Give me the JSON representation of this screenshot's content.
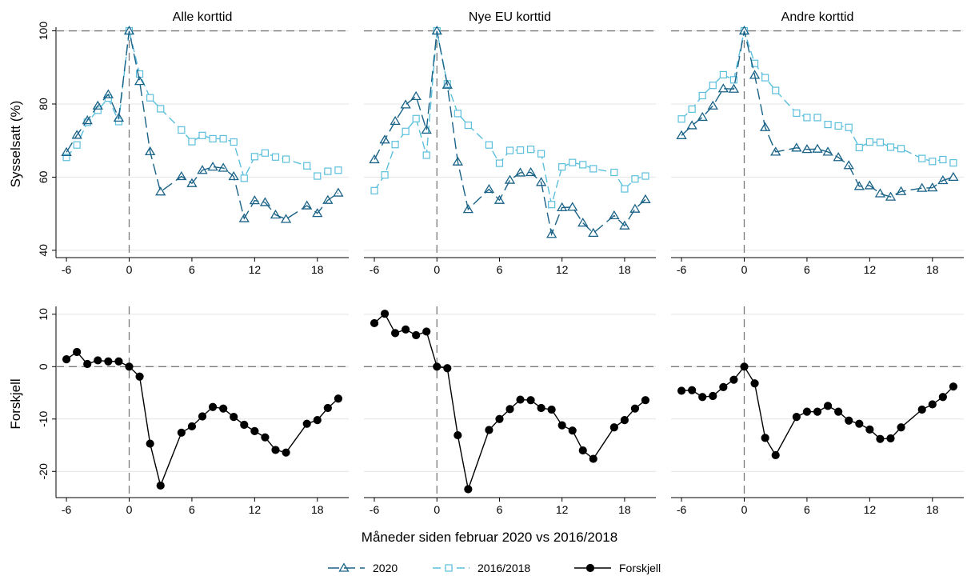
{
  "chart_data": {
    "type": "line",
    "layout": "2 rows x 3 columns, shared x-axis",
    "xlabel": "Måneder siden februar 2020 vs 2016/2018",
    "xlim": [
      -7,
      21
    ],
    "xticks": [
      -6,
      0,
      6,
      12,
      18
    ],
    "grid": true,
    "legend_position": "bottom-center",
    "legend": [
      {
        "name": "2020",
        "color": "#1a6287",
        "marker": "triangle-hollow",
        "dash": "long-dash"
      },
      {
        "name": "2016/2018",
        "color": "#5bbfdc",
        "marker": "square-hollow",
        "dash": "medium-dash"
      },
      {
        "name": "Forskjell",
        "color": "#000000",
        "marker": "circle-filled",
        "dash": "solid"
      }
    ],
    "rows": [
      {
        "ylabel": "Sysselsatt (%)",
        "ylim": [
          38,
          101
        ],
        "yticks": [
          40,
          60,
          80,
          100
        ],
        "reference_y": 100
      },
      {
        "ylabel": "Forskjell",
        "ylim": [
          -25,
          11.5
        ],
        "yticks": [
          -20,
          -10,
          0,
          10
        ],
        "reference_y": 0
      }
    ],
    "x": [
      -6,
      -5,
      -4,
      -3,
      -2,
      -1,
      0,
      1,
      2,
      3,
      4,
      5,
      6,
      7,
      8,
      9,
      10,
      11,
      12,
      13,
      14,
      15,
      16,
      17,
      18,
      19,
      20
    ],
    "panels": [
      {
        "title": "Alle korttid",
        "series_2020": [
          66.8,
          71.5,
          75.5,
          79.5,
          82.6,
          76.2,
          100,
          86.2,
          67.0,
          56.0,
          null,
          60.2,
          58.3,
          61.9,
          62.8,
          62.5,
          60.2,
          48.7,
          53.6,
          53.1,
          49.7,
          48.5,
          null,
          52.2,
          50.1,
          53.7,
          55.7
        ],
        "series_2016_2018": [
          65.4,
          68.8,
          75.0,
          78.3,
          81.6,
          75.2,
          100,
          88.2,
          81.7,
          78.7,
          null,
          72.9,
          69.7,
          71.4,
          70.5,
          70.5,
          69.6,
          59.7,
          65.6,
          66.6,
          65.5,
          64.9,
          null,
          63.1,
          60.3,
          61.6,
          61.9
        ],
        "diff": [
          1.4,
          2.8,
          0.5,
          1.2,
          1.0,
          1.0,
          0,
          -1.9,
          -14.7,
          -22.7,
          null,
          -12.6,
          -11.4,
          -9.5,
          -7.7,
          -8.0,
          -9.6,
          -11.1,
          -12.3,
          -13.5,
          -15.9,
          -16.4,
          null,
          -10.9,
          -10.2,
          -7.9,
          -6.1
        ]
      },
      {
        "title": "Nye EU korttid",
        "series_2020": [
          64.8,
          70.2,
          75.3,
          79.8,
          82.1,
          72.9,
          100,
          85.2,
          64.2,
          51.2,
          null,
          56.7,
          53.7,
          59.2,
          61.2,
          61.3,
          58.6,
          44.4,
          51.7,
          51.8,
          47.5,
          44.7,
          null,
          49.5,
          46.7,
          51.3,
          53.9
        ],
        "series_2016_2018": [
          56.3,
          60.6,
          68.9,
          72.5,
          76.0,
          66.0,
          100,
          85.5,
          77.4,
          74.2,
          null,
          68.8,
          63.8,
          67.3,
          67.4,
          67.6,
          66.4,
          52.5,
          62.8,
          64.0,
          63.4,
          62.3,
          null,
          61.3,
          56.8,
          59.5,
          60.3
        ],
        "diff": [
          8.3,
          10.1,
          6.4,
          7.1,
          6.0,
          6.7,
          0,
          -0.3,
          -13.1,
          -23.4,
          null,
          -12.1,
          -10.0,
          -8.1,
          -6.3,
          -6.4,
          -7.9,
          -8.2,
          -11.2,
          -12.2,
          -16.0,
          -17.6,
          null,
          -11.6,
          -10.2,
          -8.0,
          -6.4
        ]
      },
      {
        "title": "Andre korttid",
        "series_2020": [
          71.4,
          74.1,
          76.4,
          79.5,
          84.2,
          84.1,
          100,
          87.9,
          73.6,
          66.9,
          null,
          68.0,
          67.6,
          67.7,
          66.9,
          65.4,
          63.2,
          57.5,
          57.7,
          55.5,
          54.6,
          56.1,
          null,
          57.0,
          57.1,
          59.1,
          60.0
        ],
        "series_2016_2018": [
          75.9,
          78.6,
          82.3,
          85.1,
          88.0,
          86.6,
          100,
          91.1,
          87.2,
          83.7,
          null,
          77.5,
          76.3,
          76.3,
          74.4,
          74.0,
          73.6,
          68.1,
          69.6,
          69.5,
          68.2,
          67.8,
          null,
          65.1,
          64.3,
          64.8,
          63.9
        ],
        "diff": [
          -4.6,
          -4.5,
          -5.8,
          -5.6,
          -3.9,
          -2.5,
          0,
          -3.2,
          -13.6,
          -16.9,
          null,
          -9.6,
          -8.6,
          -8.6,
          -7.5,
          -8.6,
          -10.3,
          -10.9,
          -12.0,
          -13.8,
          -13.7,
          -11.6,
          null,
          -8.2,
          -7.2,
          -5.8,
          -3.8
        ]
      }
    ]
  }
}
